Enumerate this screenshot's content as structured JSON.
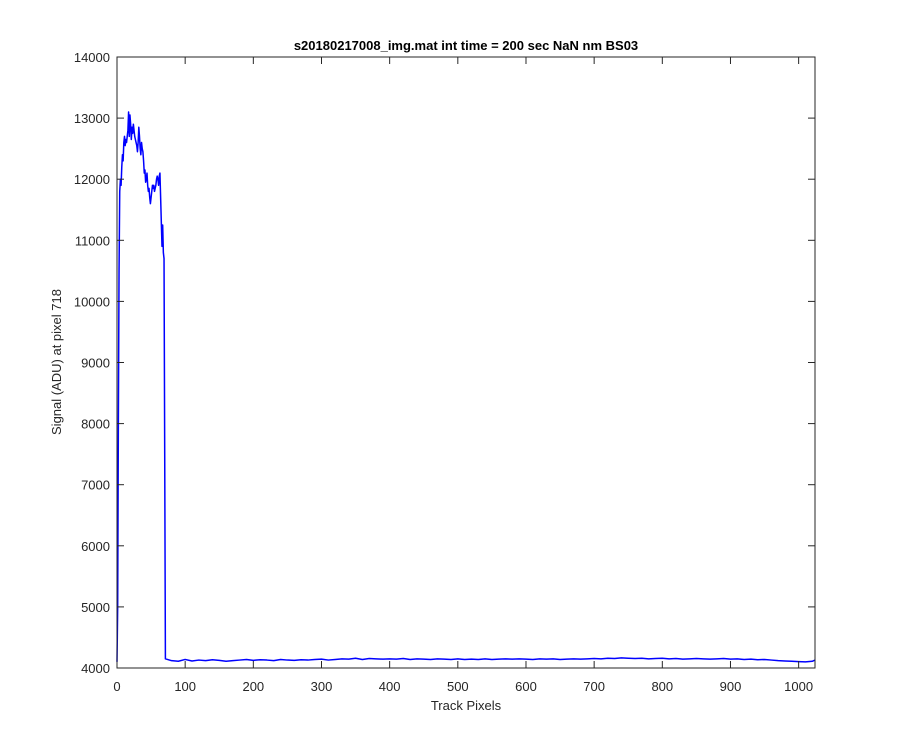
{
  "chart_data": {
    "type": "line",
    "title": "s20180217008_img.mat int time = 200 sec  NaN nm BS03",
    "xlabel": "Track Pixels",
    "ylabel": "Signal (ADU) at pixel 718",
    "xlim": [
      0,
      1024
    ],
    "ylim": [
      4000,
      14000
    ],
    "xticks": [
      0,
      100,
      200,
      300,
      400,
      500,
      600,
      700,
      800,
      900,
      1000
    ],
    "yticks": [
      4000,
      5000,
      6000,
      7000,
      8000,
      9000,
      10000,
      11000,
      12000,
      13000,
      14000
    ],
    "grid": false,
    "series": [
      {
        "color": "#0000ff",
        "points": [
          [
            0,
            4100
          ],
          [
            1,
            5000
          ],
          [
            2,
            8000
          ],
          [
            3,
            10500
          ],
          [
            4,
            11800
          ],
          [
            5,
            12000
          ],
          [
            6,
            11900
          ],
          [
            7,
            12200
          ],
          [
            8,
            12400
          ],
          [
            9,
            12300
          ],
          [
            10,
            12600
          ],
          [
            11,
            12700
          ],
          [
            12,
            12550
          ],
          [
            13,
            12650
          ],
          [
            14,
            12600
          ],
          [
            15,
            12700
          ],
          [
            16,
            12800
          ],
          [
            17,
            13100
          ],
          [
            18,
            12700
          ],
          [
            19,
            13050
          ],
          [
            20,
            12900
          ],
          [
            21,
            12650
          ],
          [
            22,
            12850
          ],
          [
            23,
            12750
          ],
          [
            24,
            12900
          ],
          [
            25,
            12800
          ],
          [
            26,
            12700
          ],
          [
            27,
            12650
          ],
          [
            28,
            12600
          ],
          [
            29,
            12550
          ],
          [
            30,
            12450
          ],
          [
            31,
            12600
          ],
          [
            32,
            12850
          ],
          [
            33,
            12700
          ],
          [
            34,
            12500
          ],
          [
            35,
            12400
          ],
          [
            36,
            12600
          ],
          [
            37,
            12500
          ],
          [
            38,
            12450
          ],
          [
            39,
            12300
          ],
          [
            40,
            12100
          ],
          [
            41,
            12150
          ],
          [
            42,
            11950
          ],
          [
            43,
            12000
          ],
          [
            44,
            12100
          ],
          [
            45,
            11900
          ],
          [
            46,
            11800
          ],
          [
            47,
            11850
          ],
          [
            48,
            11700
          ],
          [
            49,
            11600
          ],
          [
            50,
            11700
          ],
          [
            51,
            11800
          ],
          [
            52,
            11900
          ],
          [
            53,
            11850
          ],
          [
            54,
            11900
          ],
          [
            55,
            11800
          ],
          [
            56,
            11850
          ],
          [
            57,
            11900
          ],
          [
            58,
            12000
          ],
          [
            59,
            12050
          ],
          [
            60,
            12000
          ],
          [
            61,
            11900
          ],
          [
            62,
            12050
          ],
          [
            63,
            12100
          ],
          [
            64,
            11700
          ],
          [
            65,
            11300
          ],
          [
            66,
            10900
          ],
          [
            67,
            11250
          ],
          [
            68,
            10800
          ],
          [
            69,
            10700
          ],
          [
            70,
            7500
          ],
          [
            71,
            4150
          ],
          [
            80,
            4120
          ],
          [
            90,
            4110
          ],
          [
            100,
            4140
          ],
          [
            110,
            4115
          ],
          [
            120,
            4130
          ],
          [
            130,
            4120
          ],
          [
            140,
            4135
          ],
          [
            150,
            4125
          ],
          [
            160,
            4110
          ],
          [
            170,
            4120
          ],
          [
            180,
            4130
          ],
          [
            190,
            4140
          ],
          [
            200,
            4125
          ],
          [
            210,
            4135
          ],
          [
            220,
            4130
          ],
          [
            230,
            4120
          ],
          [
            240,
            4140
          ],
          [
            250,
            4130
          ],
          [
            260,
            4125
          ],
          [
            270,
            4135
          ],
          [
            280,
            4130
          ],
          [
            290,
            4140
          ],
          [
            300,
            4145
          ],
          [
            310,
            4130
          ],
          [
            320,
            4140
          ],
          [
            330,
            4150
          ],
          [
            340,
            4145
          ],
          [
            350,
            4160
          ],
          [
            360,
            4140
          ],
          [
            370,
            4155
          ],
          [
            380,
            4150
          ],
          [
            390,
            4145
          ],
          [
            400,
            4150
          ],
          [
            410,
            4145
          ],
          [
            420,
            4155
          ],
          [
            430,
            4140
          ],
          [
            440,
            4150
          ],
          [
            450,
            4145
          ],
          [
            460,
            4140
          ],
          [
            470,
            4150
          ],
          [
            480,
            4145
          ],
          [
            490,
            4140
          ],
          [
            500,
            4150
          ],
          [
            510,
            4140
          ],
          [
            520,
            4145
          ],
          [
            530,
            4140
          ],
          [
            540,
            4150
          ],
          [
            550,
            4140
          ],
          [
            560,
            4145
          ],
          [
            570,
            4150
          ],
          [
            580,
            4145
          ],
          [
            590,
            4150
          ],
          [
            600,
            4145
          ],
          [
            610,
            4140
          ],
          [
            620,
            4150
          ],
          [
            630,
            4145
          ],
          [
            640,
            4150
          ],
          [
            650,
            4140
          ],
          [
            660,
            4145
          ],
          [
            670,
            4150
          ],
          [
            680,
            4145
          ],
          [
            690,
            4150
          ],
          [
            700,
            4155
          ],
          [
            710,
            4150
          ],
          [
            720,
            4160
          ],
          [
            730,
            4155
          ],
          [
            740,
            4165
          ],
          [
            750,
            4160
          ],
          [
            760,
            4155
          ],
          [
            770,
            4160
          ],
          [
            780,
            4150
          ],
          [
            790,
            4155
          ],
          [
            800,
            4160
          ],
          [
            810,
            4150
          ],
          [
            820,
            4155
          ],
          [
            830,
            4145
          ],
          [
            840,
            4150
          ],
          [
            850,
            4155
          ],
          [
            860,
            4150
          ],
          [
            870,
            4145
          ],
          [
            880,
            4150
          ],
          [
            890,
            4155
          ],
          [
            900,
            4145
          ],
          [
            910,
            4150
          ],
          [
            920,
            4140
          ],
          [
            930,
            4145
          ],
          [
            940,
            4135
          ],
          [
            950,
            4140
          ],
          [
            960,
            4130
          ],
          [
            970,
            4120
          ],
          [
            980,
            4115
          ],
          [
            990,
            4110
          ],
          [
            1000,
            4105
          ],
          [
            1010,
            4100
          ],
          [
            1020,
            4110
          ],
          [
            1024,
            4130
          ]
        ]
      }
    ]
  }
}
